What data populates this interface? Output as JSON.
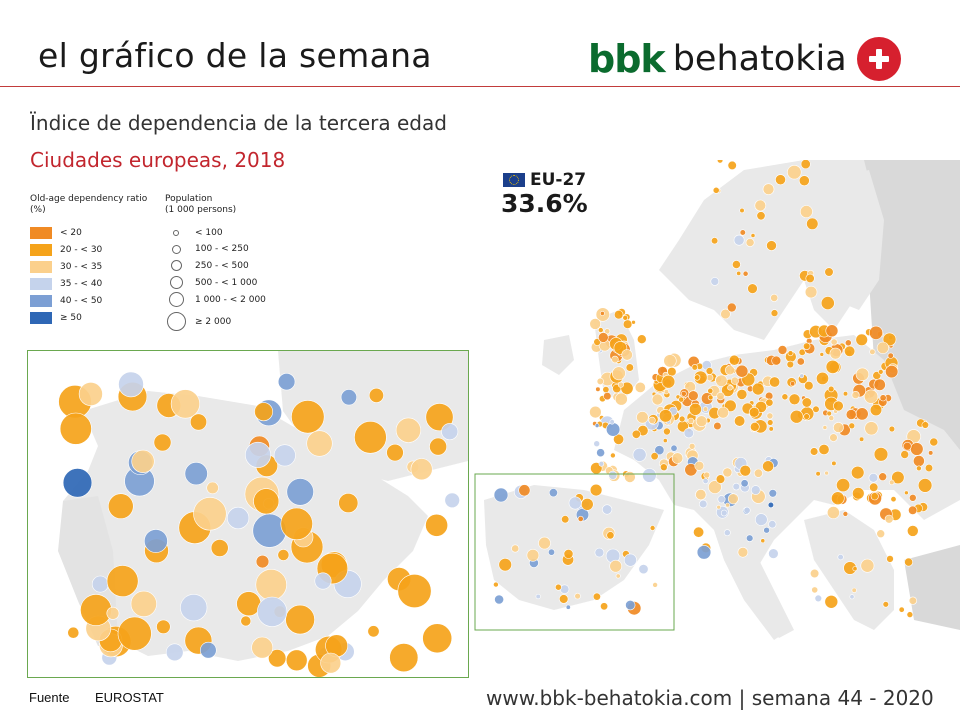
{
  "header": {
    "title": "el gráfico de la semana",
    "logo_bbk": "bbk",
    "logo_name": "behatokia"
  },
  "chart": {
    "title": "Ïndice de dependencia de la tercera edad",
    "subtitle": "Ciudades europeas, 2018"
  },
  "legend": {
    "ratio_title_line1": "Old-age dependency ratio",
    "ratio_title_line2": "(%)",
    "ratio_classes": [
      {
        "label": "< 20",
        "color": "#f08a24"
      },
      {
        "label": "20 - < 30",
        "color": "#f5a31a"
      },
      {
        "label": "30 - < 35",
        "color": "#fbd08c"
      },
      {
        "label": "35 - < 40",
        "color": "#c5d3ec"
      },
      {
        "label": "40 - < 50",
        "color": "#7c9fd4"
      },
      {
        "label": "≥ 50",
        "color": "#2e67b5"
      }
    ],
    "population_title_line1": "Population",
    "population_title_line2": "(1 000 persons)",
    "population_classes": [
      {
        "label": "< 100"
      },
      {
        "label": "100 - < 250"
      },
      {
        "label": "250 - < 500"
      },
      {
        "label": "500 - < 1 000"
      },
      {
        "label": "1 000 - < 2 000"
      },
      {
        "label": "≥ 2 000"
      }
    ]
  },
  "eu": {
    "label": "EU-27",
    "value": "33.6%"
  },
  "colors": {
    "land": "#e9e9e9",
    "non_eu_land": "#d9d9d9",
    "inset_border": "#6aa84f",
    "header_rule": "#c23b3b",
    "subtitle": "#c2262e",
    "logo_green": "#0b6b2e",
    "logo_red": "#d6202e"
  },
  "footer": {
    "source_label": "Fuente",
    "source_value": "EUROSTAT",
    "site": "www.bbk-behatokia.com | semana 44 - 2020"
  }
}
